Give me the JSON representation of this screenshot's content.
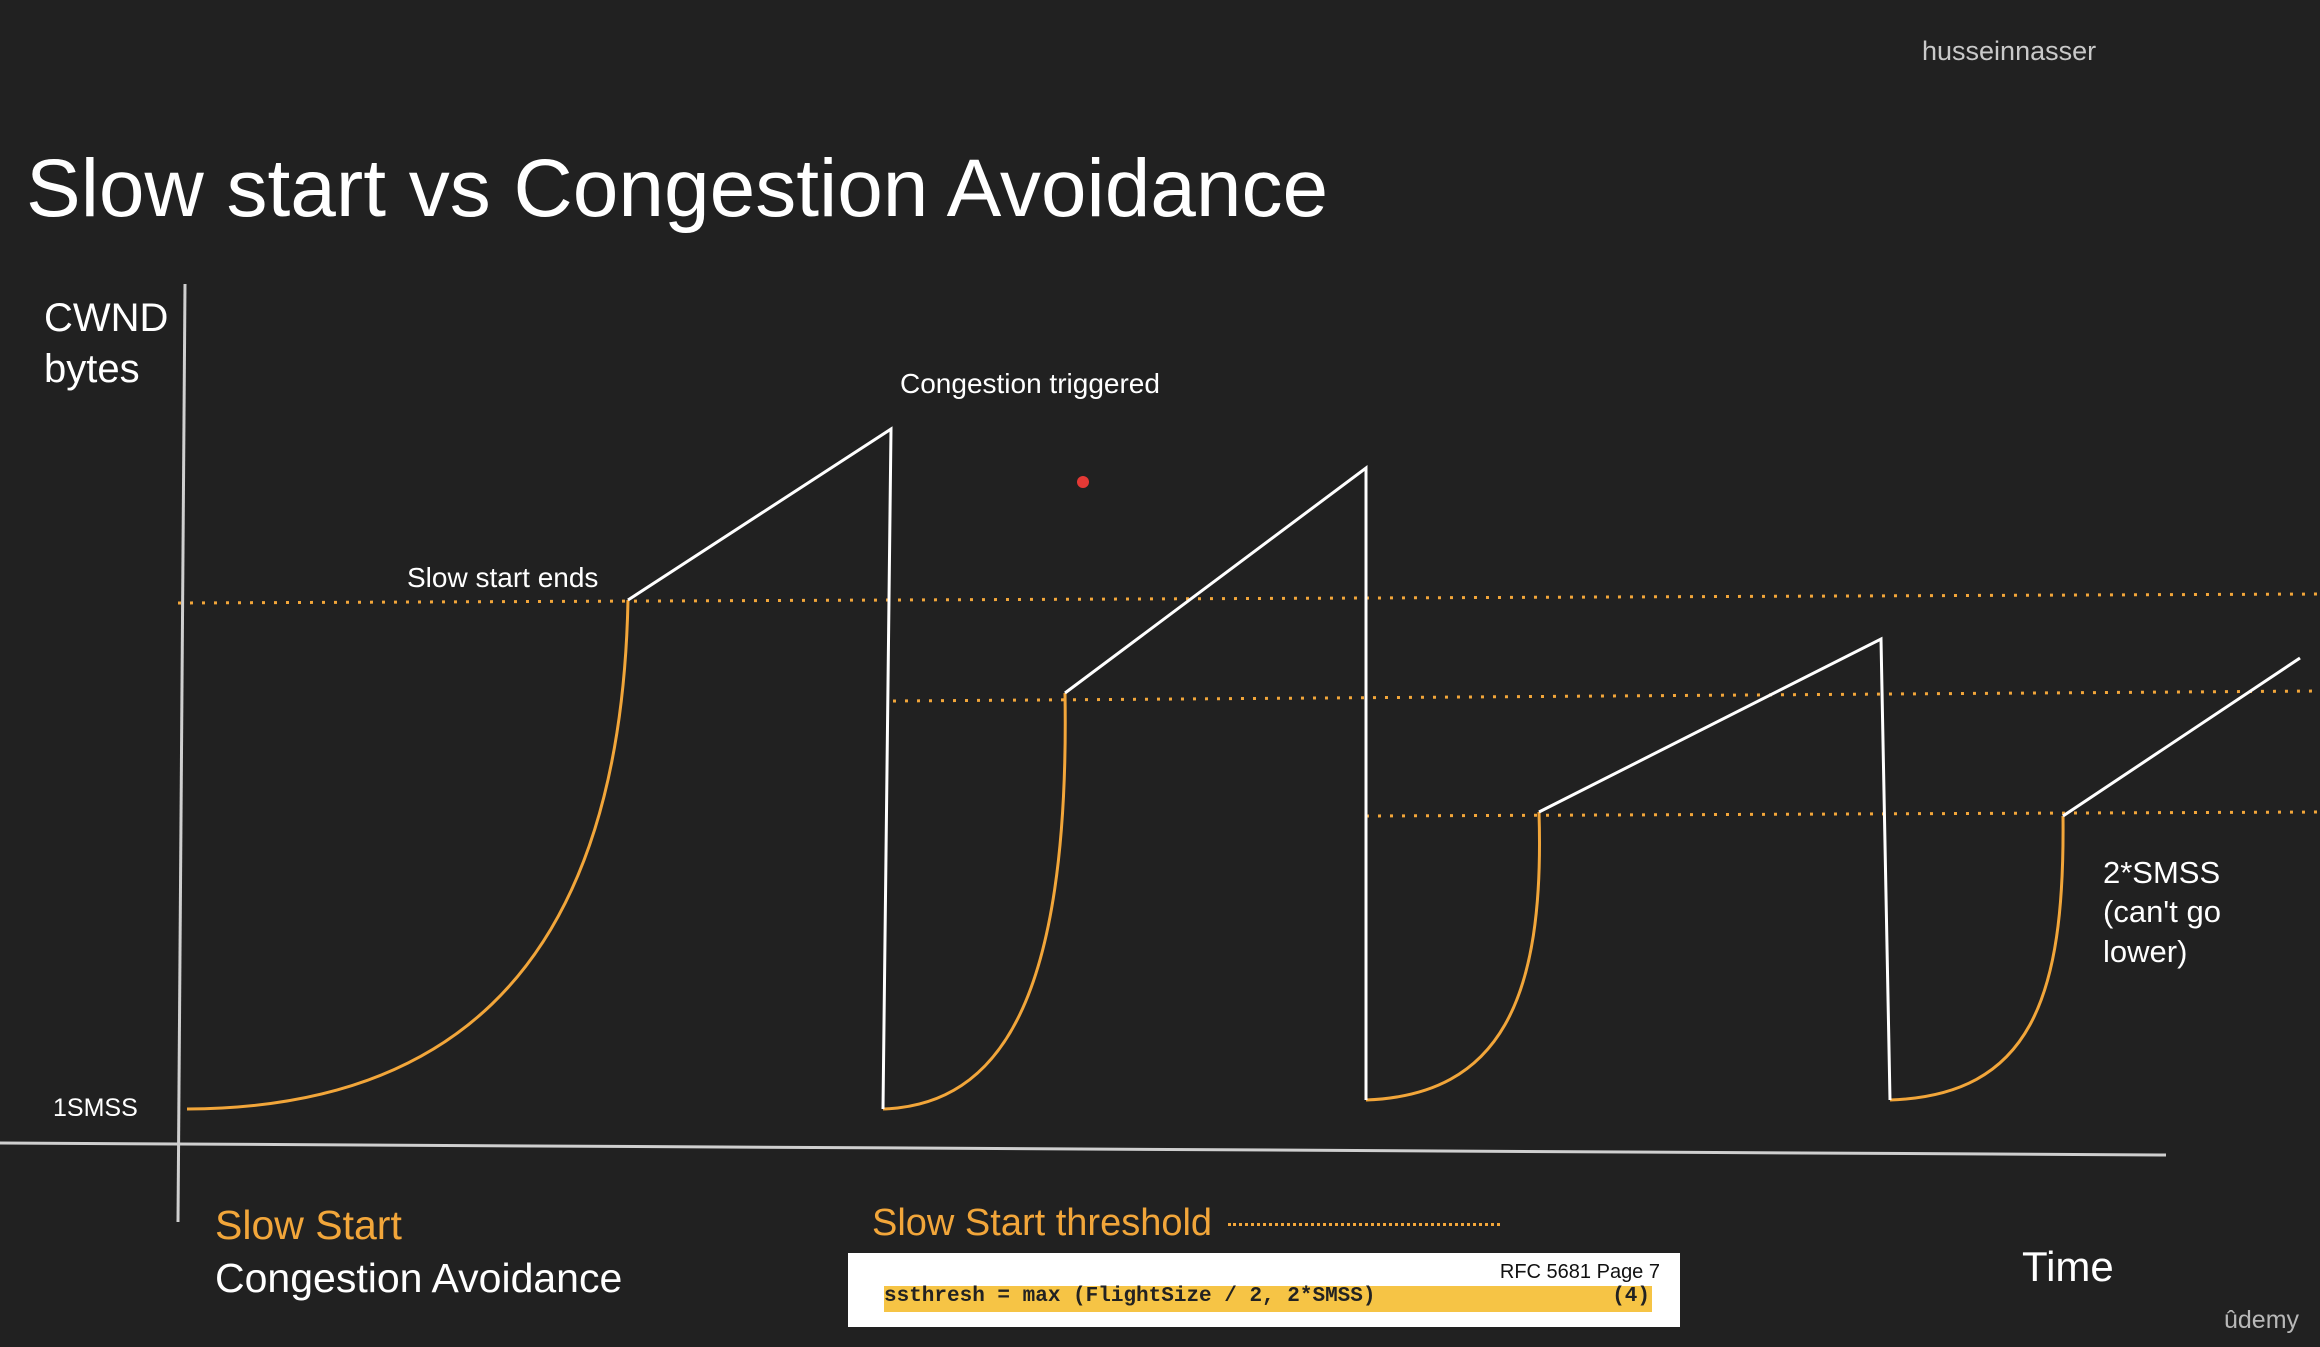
{
  "watermark": "husseinnasser",
  "title": "Slow start vs Congestion Avoidance",
  "diagram": {
    "y_axis_label_line1": "CWND",
    "y_axis_label_line2": "bytes",
    "min_label": "1SMSS",
    "x_axis_label": "Time",
    "annotation_slow_start_ends": "Slow start ends",
    "annotation_congestion_triggered": "Congestion triggered",
    "annotation_floor_line1": "2*SMSS",
    "annotation_floor_line2": "(can't go",
    "annotation_floor_line3": "lower)"
  },
  "legend": {
    "slow_start": "Slow Start",
    "congestion_avoidance": "Congestion Avoidance",
    "threshold": "Slow Start threshold"
  },
  "rfc_box": {
    "reference": "RFC 5681 Page 7",
    "formula": "ssthresh = max (FlightSize / 2, 2*SMSS)",
    "equation_number": "(4)"
  },
  "brand": "ûdemy",
  "colors": {
    "background": "#212121",
    "slow_start": "#f2a63a",
    "congestion_avoidance": "#ffffff",
    "pointer": "#e53935"
  }
}
